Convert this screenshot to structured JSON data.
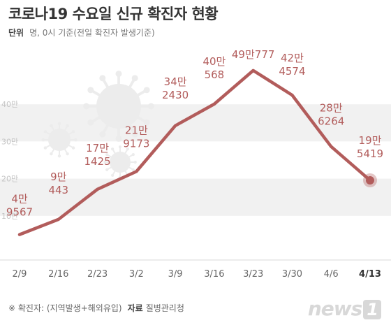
{
  "header": {
    "title": "코로나19 수요일 신규 확진자 현황",
    "unit_label": "단위",
    "unit_text": "명, 0시 기준(전일 확진자 발생기준)"
  },
  "footer": {
    "note": "※ 확진자: (지역발생+해외유입)",
    "source_label": "자료",
    "source": "질병관리청"
  },
  "logo": {
    "text": "news",
    "badge": "1"
  },
  "colors": {
    "line": "#b25c5b",
    "band": "#f1f1f1",
    "axis": "#d9d9d9",
    "virus": "#ececec"
  },
  "chart_data": {
    "type": "line",
    "categories": [
      "2/9",
      "2/16",
      "2/23",
      "3/2",
      "3/9",
      "3/16",
      "3/23",
      "3/30",
      "4/6",
      "4/13"
    ],
    "series": [
      {
        "values": [
          49567,
          90443,
          171425,
          219173,
          342430,
          400568,
          490777,
          424574,
          286264,
          195419
        ]
      }
    ],
    "data_labels": [
      [
        "4만",
        "9567"
      ],
      [
        "9만",
        "443"
      ],
      [
        "17만",
        "1425"
      ],
      [
        "21만",
        "9173"
      ],
      [
        "34만",
        "2430"
      ],
      [
        "40만",
        "568"
      ],
      [
        "49만777"
      ],
      [
        "42만",
        "4574"
      ],
      [
        "28만",
        "6264"
      ],
      [
        "19만",
        "5419"
      ]
    ],
    "y_ticks": [
      {
        "value": 100000,
        "label": "10만"
      },
      {
        "value": 200000,
        "label": "20만"
      },
      {
        "value": 300000,
        "label": "30만"
      },
      {
        "value": 400000,
        "label": "40만"
      }
    ],
    "ylim": [
      0,
      530000
    ],
    "highlight_last": true
  }
}
